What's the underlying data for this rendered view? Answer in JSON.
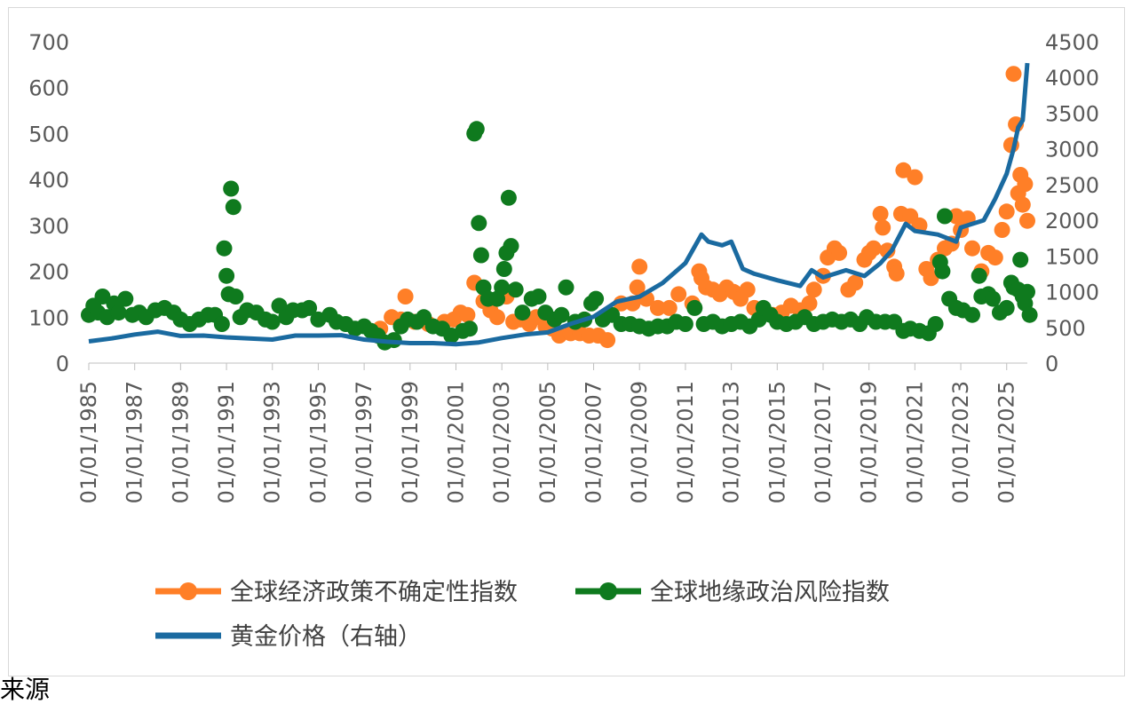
{
  "chart_data": {
    "type": "scatter",
    "x_axis": {
      "tick_labels": [
        "01/01/1985",
        "01/01/1987",
        "01/01/1989",
        "01/01/1991",
        "01/01/1993",
        "01/01/1995",
        "01/01/1997",
        "01/01/1999",
        "01/01/2001",
        "01/01/2003",
        "01/01/2005",
        "01/01/2007",
        "01/01/2009",
        "01/01/2011",
        "01/01/2013",
        "01/01/2015",
        "01/01/2017",
        "01/01/2019",
        "01/01/2021",
        "01/01/2023",
        "01/01/2025"
      ],
      "range": [
        1985,
        2025.9
      ]
    },
    "y_left": {
      "range": [
        0,
        700
      ],
      "ticks": [
        0,
        100,
        200,
        300,
        400,
        500,
        600,
        700
      ]
    },
    "y_right": {
      "range": [
        0,
        4500
      ],
      "ticks": [
        0,
        500,
        1000,
        1500,
        2000,
        2500,
        3000,
        3500,
        4000,
        4500
      ]
    },
    "series": [
      {
        "name": "全球经济政策不确定性指数",
        "axis": "left",
        "color": "#ff7f27",
        "points": [
          [
            1997.7,
            75
          ],
          [
            1998.2,
            100
          ],
          [
            1998.6,
            95
          ],
          [
            1998.8,
            145
          ],
          [
            1999.2,
            90
          ],
          [
            1999.8,
            85
          ],
          [
            2000.5,
            90
          ],
          [
            2000.9,
            95
          ],
          [
            2001.2,
            110
          ],
          [
            2001.5,
            105
          ],
          [
            2001.8,
            175
          ],
          [
            2002.2,
            135
          ],
          [
            2002.5,
            115
          ],
          [
            2002.8,
            100
          ],
          [
            2003.2,
            145
          ],
          [
            2003.5,
            90
          ],
          [
            2003.8,
            95
          ],
          [
            2004.2,
            85
          ],
          [
            2004.5,
            100
          ],
          [
            2004.9,
            80
          ],
          [
            2005.2,
            75
          ],
          [
            2005.5,
            60
          ],
          [
            2006.0,
            65
          ],
          [
            2006.4,
            65
          ],
          [
            2006.8,
            60
          ],
          [
            2007.2,
            60
          ],
          [
            2007.6,
            50
          ],
          [
            2008.2,
            130
          ],
          [
            2008.7,
            130
          ],
          [
            2008.9,
            165
          ],
          [
            2009.0,
            210
          ],
          [
            2009.3,
            140
          ],
          [
            2009.8,
            120
          ],
          [
            2010.3,
            120
          ],
          [
            2010.7,
            150
          ],
          [
            2011.3,
            130
          ],
          [
            2011.6,
            200
          ],
          [
            2011.7,
            185
          ],
          [
            2011.9,
            165
          ],
          [
            2012.2,
            160
          ],
          [
            2012.5,
            150
          ],
          [
            2012.8,
            165
          ],
          [
            2013.1,
            155
          ],
          [
            2013.4,
            140
          ],
          [
            2013.7,
            160
          ],
          [
            2014.0,
            120
          ],
          [
            2014.4,
            115
          ],
          [
            2014.8,
            105
          ],
          [
            2015.2,
            110
          ],
          [
            2015.6,
            125
          ],
          [
            2016.0,
            115
          ],
          [
            2016.4,
            130
          ],
          [
            2016.6,
            160
          ],
          [
            2017.0,
            190
          ],
          [
            2017.2,
            230
          ],
          [
            2017.5,
            250
          ],
          [
            2017.7,
            240
          ],
          [
            2018.1,
            160
          ],
          [
            2018.4,
            175
          ],
          [
            2018.8,
            225
          ],
          [
            2019.0,
            240
          ],
          [
            2019.2,
            250
          ],
          [
            2019.5,
            325
          ],
          [
            2019.6,
            295
          ],
          [
            2019.8,
            245
          ],
          [
            2020.1,
            210
          ],
          [
            2020.2,
            195
          ],
          [
            2020.4,
            325
          ],
          [
            2020.5,
            420
          ],
          [
            2020.8,
            320
          ],
          [
            2021.0,
            405
          ],
          [
            2021.2,
            300
          ],
          [
            2021.5,
            205
          ],
          [
            2021.7,
            185
          ],
          [
            2022.0,
            225
          ],
          [
            2022.3,
            250
          ],
          [
            2022.6,
            260
          ],
          [
            2022.8,
            320
          ],
          [
            2023.0,
            290
          ],
          [
            2023.3,
            315
          ],
          [
            2023.5,
            250
          ],
          [
            2023.9,
            200
          ],
          [
            2024.2,
            240
          ],
          [
            2024.5,
            230
          ],
          [
            2024.8,
            290
          ],
          [
            2025.0,
            330
          ],
          [
            2025.2,
            475
          ],
          [
            2025.3,
            630
          ],
          [
            2025.4,
            520
          ],
          [
            2025.5,
            370
          ],
          [
            2025.6,
            410
          ],
          [
            2025.7,
            345
          ],
          [
            2025.8,
            390
          ],
          [
            2025.9,
            310
          ]
        ]
      },
      {
        "name": "全球地缘政治风险指数",
        "axis": "left",
        "color": "#0f7a1e",
        "points": [
          [
            1985.0,
            105
          ],
          [
            1985.2,
            125
          ],
          [
            1985.4,
            110
          ],
          [
            1985.6,
            145
          ],
          [
            1985.8,
            100
          ],
          [
            1986.1,
            130
          ],
          [
            1986.3,
            110
          ],
          [
            1986.6,
            140
          ],
          [
            1986.9,
            105
          ],
          [
            1987.2,
            110
          ],
          [
            1987.5,
            100
          ],
          [
            1987.9,
            115
          ],
          [
            1988.3,
            120
          ],
          [
            1988.7,
            110
          ],
          [
            1989.0,
            95
          ],
          [
            1989.4,
            85
          ],
          [
            1989.8,
            95
          ],
          [
            1990.2,
            105
          ],
          [
            1990.5,
            105
          ],
          [
            1990.8,
            85
          ],
          [
            1990.9,
            250
          ],
          [
            1991.0,
            190
          ],
          [
            1991.1,
            150
          ],
          [
            1991.2,
            380
          ],
          [
            1991.3,
            340
          ],
          [
            1991.4,
            145
          ],
          [
            1991.6,
            100
          ],
          [
            1991.9,
            115
          ],
          [
            1992.3,
            110
          ],
          [
            1992.7,
            95
          ],
          [
            1993.0,
            90
          ],
          [
            1993.3,
            125
          ],
          [
            1993.6,
            100
          ],
          [
            1993.9,
            115
          ],
          [
            1994.3,
            115
          ],
          [
            1994.6,
            120
          ],
          [
            1995.0,
            95
          ],
          [
            1995.5,
            105
          ],
          [
            1995.8,
            90
          ],
          [
            1996.2,
            85
          ],
          [
            1996.6,
            75
          ],
          [
            1997.0,
            80
          ],
          [
            1997.3,
            70
          ],
          [
            1997.6,
            60
          ],
          [
            1997.9,
            45
          ],
          [
            1998.3,
            50
          ],
          [
            1998.6,
            80
          ],
          [
            1998.9,
            95
          ],
          [
            1999.3,
            90
          ],
          [
            1999.6,
            100
          ],
          [
            2000.0,
            80
          ],
          [
            2000.4,
            75
          ],
          [
            2000.8,
            60
          ],
          [
            2001.3,
            70
          ],
          [
            2001.6,
            75
          ],
          [
            2001.8,
            500
          ],
          [
            2001.9,
            510
          ],
          [
            2002.0,
            305
          ],
          [
            2002.1,
            235
          ],
          [
            2002.2,
            165
          ],
          [
            2002.4,
            140
          ],
          [
            2002.8,
            140
          ],
          [
            2003.0,
            165
          ],
          [
            2003.1,
            205
          ],
          [
            2003.2,
            240
          ],
          [
            2003.3,
            360
          ],
          [
            2003.4,
            255
          ],
          [
            2003.6,
            160
          ],
          [
            2003.9,
            110
          ],
          [
            2004.3,
            140
          ],
          [
            2004.6,
            145
          ],
          [
            2004.9,
            110
          ],
          [
            2005.3,
            95
          ],
          [
            2005.6,
            105
          ],
          [
            2005.8,
            165
          ],
          [
            2006.2,
            90
          ],
          [
            2006.6,
            95
          ],
          [
            2006.9,
            130
          ],
          [
            2007.1,
            140
          ],
          [
            2007.4,
            95
          ],
          [
            2007.8,
            105
          ],
          [
            2008.2,
            85
          ],
          [
            2008.6,
            85
          ],
          [
            2009.0,
            80
          ],
          [
            2009.4,
            75
          ],
          [
            2009.8,
            80
          ],
          [
            2010.2,
            80
          ],
          [
            2010.6,
            90
          ],
          [
            2011.0,
            85
          ],
          [
            2011.4,
            120
          ],
          [
            2011.8,
            85
          ],
          [
            2012.2,
            90
          ],
          [
            2012.6,
            80
          ],
          [
            2013.0,
            85
          ],
          [
            2013.4,
            90
          ],
          [
            2013.8,
            80
          ],
          [
            2014.2,
            95
          ],
          [
            2014.4,
            120
          ],
          [
            2014.7,
            105
          ],
          [
            2015.0,
            90
          ],
          [
            2015.4,
            85
          ],
          [
            2015.8,
            90
          ],
          [
            2016.2,
            100
          ],
          [
            2016.6,
            85
          ],
          [
            2017.0,
            90
          ],
          [
            2017.4,
            95
          ],
          [
            2017.8,
            90
          ],
          [
            2018.2,
            95
          ],
          [
            2018.6,
            85
          ],
          [
            2018.9,
            100
          ],
          [
            2019.3,
            90
          ],
          [
            2019.7,
            90
          ],
          [
            2020.1,
            90
          ],
          [
            2020.5,
            70
          ],
          [
            2020.8,
            75
          ],
          [
            2021.2,
            70
          ],
          [
            2021.6,
            65
          ],
          [
            2021.9,
            85
          ],
          [
            2022.1,
            220
          ],
          [
            2022.2,
            200
          ],
          [
            2022.3,
            320
          ],
          [
            2022.5,
            140
          ],
          [
            2022.8,
            120
          ],
          [
            2023.1,
            115
          ],
          [
            2023.5,
            105
          ],
          [
            2023.8,
            190
          ],
          [
            2023.9,
            145
          ],
          [
            2024.2,
            150
          ],
          [
            2024.4,
            140
          ],
          [
            2024.7,
            110
          ],
          [
            2025.0,
            120
          ],
          [
            2025.2,
            175
          ],
          [
            2025.3,
            165
          ],
          [
            2025.5,
            160
          ],
          [
            2025.6,
            225
          ],
          [
            2025.7,
            145
          ],
          [
            2025.8,
            130
          ],
          [
            2025.9,
            155
          ],
          [
            2026.0,
            105
          ]
        ]
      },
      {
        "name": "黄金价格（右轴）",
        "axis": "right",
        "color": "#1a6aa0",
        "type": "line",
        "points": [
          [
            1985.0,
            305
          ],
          [
            1986.0,
            345
          ],
          [
            1987.0,
            400
          ],
          [
            1988.0,
            440
          ],
          [
            1989.0,
            380
          ],
          [
            1990.0,
            385
          ],
          [
            1991.0,
            360
          ],
          [
            1992.0,
            345
          ],
          [
            1993.0,
            330
          ],
          [
            1994.0,
            385
          ],
          [
            1995.0,
            385
          ],
          [
            1996.0,
            390
          ],
          [
            1997.0,
            330
          ],
          [
            1998.0,
            300
          ],
          [
            1999.0,
            280
          ],
          [
            2000.0,
            280
          ],
          [
            2001.0,
            265
          ],
          [
            2002.0,
            290
          ],
          [
            2003.0,
            350
          ],
          [
            2004.0,
            400
          ],
          [
            2005.0,
            430
          ],
          [
            2006.0,
            550
          ],
          [
            2007.0,
            650
          ],
          [
            2008.0,
            860
          ],
          [
            2009.0,
            930
          ],
          [
            2010.0,
            1120
          ],
          [
            2011.0,
            1400
          ],
          [
            2011.7,
            1800
          ],
          [
            2012.0,
            1700
          ],
          [
            2012.6,
            1650
          ],
          [
            2013.0,
            1700
          ],
          [
            2013.5,
            1320
          ],
          [
            2014.0,
            1250
          ],
          [
            2015.0,
            1160
          ],
          [
            2016.0,
            1080
          ],
          [
            2016.5,
            1300
          ],
          [
            2017.0,
            1200
          ],
          [
            2018.0,
            1300
          ],
          [
            2018.8,
            1220
          ],
          [
            2019.5,
            1400
          ],
          [
            2020.0,
            1580
          ],
          [
            2020.6,
            1950
          ],
          [
            2021.0,
            1850
          ],
          [
            2022.0,
            1800
          ],
          [
            2022.8,
            1700
          ],
          [
            2023.0,
            1900
          ],
          [
            2024.0,
            2000
          ],
          [
            2024.5,
            2300
          ],
          [
            2025.0,
            2650
          ],
          [
            2025.3,
            3000
          ],
          [
            2025.5,
            3300
          ],
          [
            2025.7,
            3400
          ],
          [
            2025.9,
            4200
          ]
        ]
      }
    ],
    "legend_placement": "bottom",
    "grid": false
  },
  "footer_text": "来源"
}
